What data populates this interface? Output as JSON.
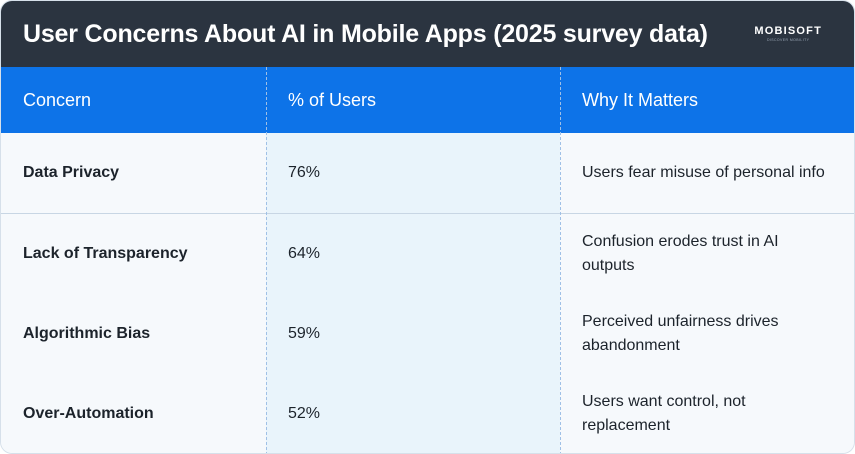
{
  "header": {
    "title": "User Concerns About AI in Mobile Apps (2025 survey data)",
    "logo_text": "MOBISOFT",
    "logo_tagline": "DISCOVER MOBILITY"
  },
  "table": {
    "columns": [
      "Concern",
      "% of Users",
      "Why It Matters"
    ],
    "rows": [
      {
        "concern": "Data Privacy",
        "percent": "76%",
        "why": "Users fear misuse of personal info"
      },
      {
        "concern": "Lack of Transparency",
        "percent": "64%",
        "why": "Confusion erodes trust in AI outputs"
      },
      {
        "concern": "Algorithmic Bias",
        "percent": "59%",
        "why": "Perceived unfairness drives abandonment"
      },
      {
        "concern": "Over-Automation",
        "percent": "52%",
        "why": "Users want control, not replacement"
      }
    ]
  }
}
